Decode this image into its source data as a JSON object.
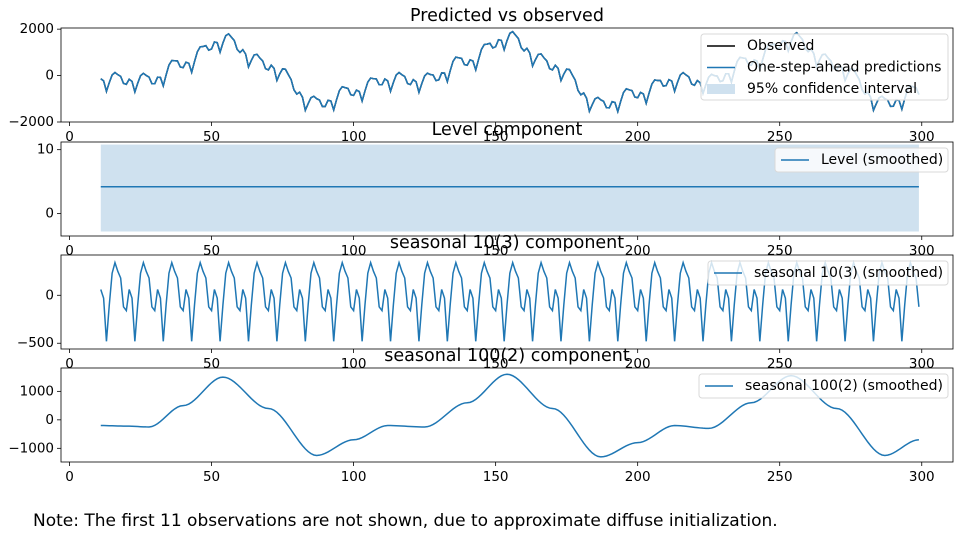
{
  "colors": {
    "observed": "#000000",
    "series": "#1f77b4",
    "ci_fill": "#cfe1ef",
    "legend_border": "#d9d9d9"
  },
  "note": "Note: The first 11 observations are not shown, due to approximate diffuse initialization.",
  "chart_data": [
    {
      "type": "line",
      "title": "Predicted vs observed",
      "xlim": [
        -3,
        311
      ],
      "ylim": [
        -2000,
        2050
      ],
      "xticks": [
        0,
        50,
        100,
        150,
        200,
        250,
        300
      ],
      "yticks": [
        -2000,
        0,
        2000
      ],
      "x_start": 11,
      "x_end": 299,
      "legend": {
        "position": "upper-right",
        "entries": [
          "Observed",
          "One-step-ahead predictions",
          "95% confidence interval"
        ]
      },
      "series": [
        {
          "name": "Observed",
          "components": [
            "level",
            "seasonal_10",
            "seasonal_100"
          ]
        },
        {
          "name": "One-step-ahead predictions",
          "components": [
            "level",
            "seasonal_10",
            "seasonal_100"
          ]
        },
        {
          "name": "95% confidence interval",
          "kind": "band"
        }
      ]
    },
    {
      "type": "line",
      "title": "Level component",
      "xlim": [
        -3,
        311
      ],
      "ylim": [
        -3.5,
        11.2
      ],
      "xticks": [
        0,
        50,
        100,
        150,
        200,
        250,
        300
      ],
      "yticks": [
        0,
        10
      ],
      "x_start": 11,
      "x_end": 299,
      "legend": {
        "position": "upper-right",
        "entries": [
          "Level (smoothed)"
        ]
      },
      "series": [
        {
          "name": "Level (smoothed)",
          "constant": 4.2,
          "ci": [
            -2.8,
            10.8
          ]
        }
      ]
    },
    {
      "type": "line",
      "title": "seasonal 10(3) component",
      "xlim": [
        -3,
        311
      ],
      "ylim": [
        -560,
        420
      ],
      "xticks": [
        0,
        50,
        100,
        150,
        200,
        250,
        300
      ],
      "yticks": [
        -500,
        0
      ],
      "x_start": 11,
      "x_end": 299,
      "legend": {
        "position": "upper-right",
        "entries": [
          "seasonal 10(3) (smoothed)"
        ]
      },
      "series": [
        {
          "name": "seasonal 10(3) (smoothed)",
          "period": 10,
          "cycle_values": [
            -160,
            60,
            -30,
            -480,
            -100,
            230,
            340,
            250,
            180,
            -120
          ]
        }
      ]
    },
    {
      "type": "line",
      "title": "seasonal 100(2) component",
      "xlim": [
        -3,
        311
      ],
      "ylim": [
        -1480,
        1820
      ],
      "xticks": [
        0,
        50,
        100,
        150,
        200,
        250,
        300
      ],
      "yticks": [
        -1000,
        0,
        1000
      ],
      "x_start": 11,
      "x_end": 299,
      "legend": {
        "position": "upper-right",
        "entries": [
          "seasonal 100(2) (smoothed)"
        ]
      },
      "series": [
        {
          "name": "seasonal 100(2) (smoothed)",
          "period": 100,
          "points": [
            [
              11,
              -200
            ],
            [
              20,
              -220
            ],
            [
              28,
              -250
            ],
            [
              40,
              500
            ],
            [
              54,
              1500
            ],
            [
              70,
              400
            ],
            [
              87,
              -1250
            ],
            [
              100,
              -700
            ],
            [
              112,
              -200
            ],
            [
              125,
              -250
            ],
            [
              140,
              600
            ],
            [
              154,
              1600
            ],
            [
              170,
              400
            ],
            [
              187,
              -1300
            ],
            [
              200,
              -800
            ],
            [
              213,
              -200
            ],
            [
              225,
              -300
            ],
            [
              240,
              600
            ],
            [
              254,
              1550
            ],
            [
              270,
              400
            ],
            [
              287,
              -1250
            ],
            [
              299,
              -700
            ]
          ]
        }
      ]
    }
  ]
}
